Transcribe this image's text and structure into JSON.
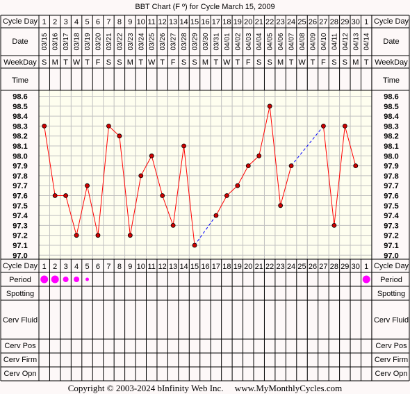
{
  "title": "BBT Chart (F º) for Cycle March 15, 2009",
  "row_labels": {
    "cycle_day": "Cycle Day",
    "date": "Date",
    "weekday": "WeekDay",
    "time": "Time",
    "period": "Period",
    "spotting": "Spotting",
    "cerv_fluid": "Cerv Fluid",
    "cerv_pos": "Cerv Pos",
    "cerv_firm": "Cerv Firm",
    "cerv_opn": "Cerv Opn"
  },
  "footer": "Copyright © 2003-2024 bInfinity Web Inc.     www.MyMonthlyCycles.com",
  "colors": {
    "background": "#fdf8f8",
    "chart_bg": "#fefeef",
    "temp_line": "#ff0000",
    "point_fill": "#cc0000",
    "gap_line": "#0000ff",
    "period_dot": "#ff00ff",
    "grid": "#c0c0c0"
  },
  "chart_data": {
    "type": "line",
    "title": "BBT Chart (F º) for Cycle March 15, 2009",
    "cycle_days": [
      1,
      2,
      3,
      4,
      5,
      6,
      7,
      8,
      9,
      10,
      11,
      12,
      13,
      14,
      15,
      16,
      17,
      18,
      19,
      20,
      21,
      22,
      23,
      24,
      25,
      26,
      27,
      28,
      29,
      30,
      1
    ],
    "dates": [
      "03/15",
      "03/16",
      "03/17",
      "03/18",
      "03/19",
      "03/20",
      "03/21",
      "03/22",
      "03/23",
      "03/24",
      "03/25",
      "03/26",
      "03/27",
      "03/28",
      "03/29",
      "03/30",
      "03/31",
      "04/01",
      "04/02",
      "04/03",
      "04/04",
      "04/05",
      "04/06",
      "04/07",
      "04/08",
      "04/09",
      "04/10",
      "04/11",
      "04/12",
      "04/13",
      "04/14"
    ],
    "weekdays": [
      "S",
      "M",
      "T",
      "W",
      "T",
      "F",
      "S",
      "S",
      "M",
      "T",
      "W",
      "T",
      "F",
      "S",
      "S",
      "M",
      "T",
      "W",
      "T",
      "F",
      "S",
      "S",
      "M",
      "T",
      "W",
      "T",
      "F",
      "S",
      "S",
      "M",
      "T"
    ],
    "y_ticks": [
      "98.6",
      "98.5",
      "98.4",
      "98.3",
      "98.2",
      "98.1",
      "98.0",
      "97.9",
      "97.8",
      "97.7",
      "97.6",
      "97.5",
      "97.4",
      "97.3",
      "97.2",
      "97.1",
      "97.0"
    ],
    "ylim": [
      97.0,
      98.6
    ],
    "temperatures": [
      98.3,
      97.6,
      97.6,
      97.2,
      97.7,
      97.2,
      98.3,
      98.2,
      97.2,
      97.8,
      98.0,
      97.6,
      97.3,
      98.1,
      97.1,
      null,
      97.4,
      97.6,
      97.7,
      97.9,
      98.0,
      98.5,
      97.5,
      97.9,
      null,
      null,
      98.3,
      97.3,
      98.3,
      97.9,
      null
    ],
    "period": [
      3,
      3,
      2,
      2,
      1,
      0,
      0,
      0,
      0,
      0,
      0,
      0,
      0,
      0,
      0,
      0,
      0,
      0,
      0,
      0,
      0,
      0,
      0,
      0,
      0,
      0,
      0,
      0,
      0,
      0,
      3
    ],
    "grid": true
  }
}
